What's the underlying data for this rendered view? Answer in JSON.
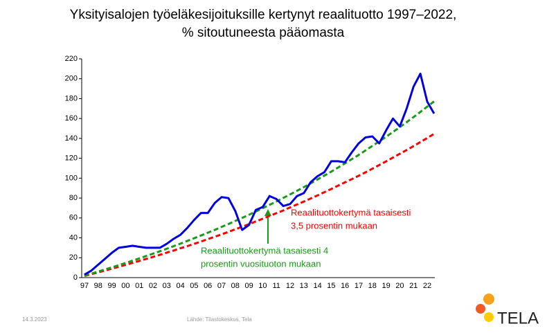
{
  "chart_data": {
    "type": "line",
    "title": [
      "Yksityisalojen työeläkesijoituksille kertynyt reaalituotto 1997–2022,",
      "% sitoutuneesta pääomasta"
    ],
    "categories": [
      "97",
      null,
      "98",
      null,
      "99",
      null,
      "00",
      null,
      "01",
      null,
      "02",
      null,
      "03",
      null,
      "04",
      null,
      "05",
      null,
      "06",
      null,
      "07",
      null,
      "08",
      null,
      "09",
      null,
      "10",
      null,
      "11",
      null,
      "12",
      null,
      "13",
      null,
      "14",
      null,
      "15",
      null,
      "16",
      null,
      "17",
      null,
      "18",
      null,
      "19",
      null,
      "20",
      null,
      "21",
      null,
      "22",
      null
    ],
    "series": [
      {
        "color": "#ff0000",
        "dashed": true,
        "values": [
          1.7,
          3.5,
          5.3,
          7.1,
          9.0,
          10.9,
          12.8,
          14.8,
          16.8,
          18.8,
          20.8,
          22.9,
          25.1,
          27.2,
          29.5,
          31.7,
          34.0,
          36.3,
          38.7,
          41.1,
          43.5,
          46.0,
          48.6,
          51.1,
          53.8,
          56.5,
          59.2,
          62.0,
          64.8,
          67.5,
          70.6,
          73.5,
          76.5,
          79.6,
          82.7,
          85.9,
          89.1,
          92.5,
          95.8,
          99.0,
          102.4,
          105.9,
          109.5,
          113.2,
          116.9,
          120.7,
          124.5,
          128.3,
          132.2,
          136.3,
          140.4,
          144.6
        ]
      },
      {
        "color": "#1a9a1a",
        "dashed": true,
        "values": [
          2.0,
          4.0,
          6.1,
          8.2,
          10.3,
          12.5,
          14.7,
          17.0,
          19.3,
          21.7,
          24.1,
          26.5,
          29.0,
          31.6,
          34.2,
          36.9,
          39.6,
          42.3,
          45.2,
          48.0,
          51.0,
          53.9,
          57.0,
          60.1,
          63.2,
          66.5,
          69.8,
          73.2,
          76.6,
          80.1,
          83.7,
          87.3,
          91.0,
          94.8,
          98.7,
          102.6,
          106.6,
          110.7,
          114.9,
          119.1,
          123.4,
          127.9,
          132.4,
          137.0,
          141.6,
          146.5,
          151.3,
          156.3,
          161.4,
          166.6,
          171.9,
          177.2
        ]
      },
      {
        "color": "#0000e0",
        "dashed": false,
        "values": [
          3,
          7,
          13,
          19,
          25,
          30,
          31,
          32,
          31,
          30,
          30,
          30,
          34,
          39,
          43,
          50,
          58,
          65,
          65,
          75,
          81,
          80,
          67,
          48,
          53,
          68,
          71,
          82,
          79,
          72,
          74,
          82,
          85,
          96,
          102,
          106,
          117,
          117,
          116,
          126,
          135,
          141,
          142,
          135,
          148,
          160,
          152,
          170,
          192,
          205,
          177,
          165
        ]
      }
    ],
    "ylim": [
      0,
      220
    ],
    "yticks": [
      0,
      20,
      40,
      60,
      80,
      100,
      120,
      140,
      160,
      180,
      200,
      220
    ],
    "annotations": [
      {
        "text": [
          "Reaalituottokertymä tasaisesti",
          "3,5 prosentin mukaan"
        ],
        "color": "#ff0000"
      },
      {
        "text": [
          "Reaalituottokertymä tasaisesti 4",
          "prosentin vuosituoton mukaan"
        ],
        "color": "#1a9a1a"
      }
    ]
  },
  "footer": {
    "date": "14.3.2023",
    "source": "Lähde: Tilastokeskus, Tela",
    "logo": "TELA"
  }
}
